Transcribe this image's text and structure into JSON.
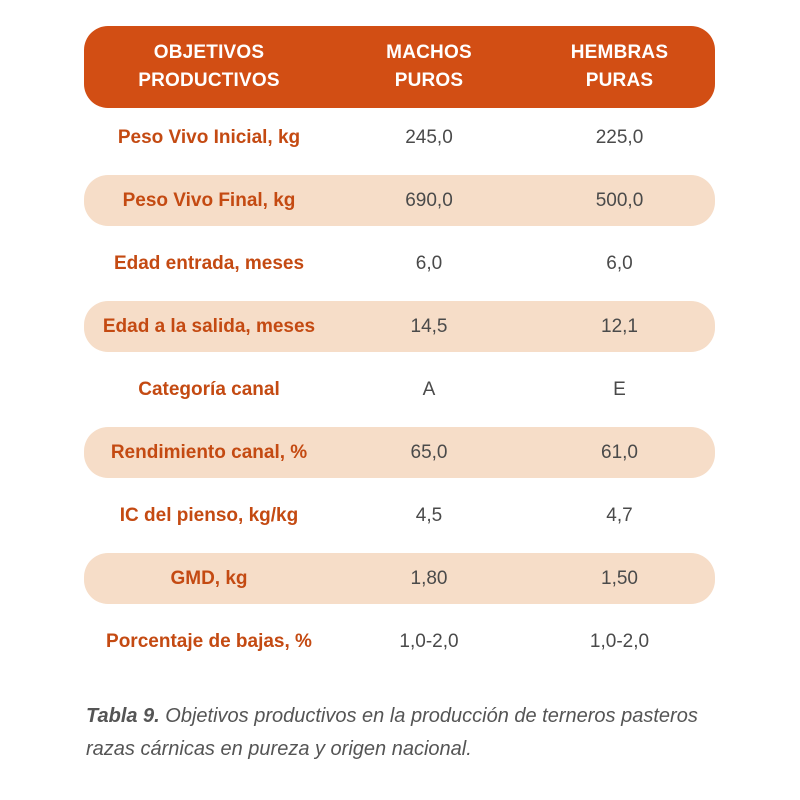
{
  "table": {
    "headers": {
      "objetivos": [
        "OBJETIVOS",
        "PRODUCTIVOS"
      ],
      "machos": [
        "MACHOS",
        "PUROS"
      ],
      "hembras": [
        "HEMBRAS",
        "PURAS"
      ]
    },
    "rows": [
      {
        "label": "Peso Vivo Inicial, kg",
        "machos": "245,0",
        "hembras": "225,0"
      },
      {
        "label": "Peso Vivo Final, kg",
        "machos": "690,0",
        "hembras": "500,0"
      },
      {
        "label": "Edad entrada, meses",
        "machos": "6,0",
        "hembras": "6,0"
      },
      {
        "label": "Edad a la salida, meses",
        "machos": "14,5",
        "hembras": "12,1"
      },
      {
        "label": "Categoría canal",
        "machos": "A",
        "hembras": "E"
      },
      {
        "label": "Rendimiento canal, %",
        "machos": "65,0",
        "hembras": "61,0"
      },
      {
        "label": "IC del pienso, kg/kg",
        "machos": "4,5",
        "hembras": "4,7"
      },
      {
        "label": "GMD, kg",
        "machos": "1,80",
        "hembras": "1,50"
      },
      {
        "label": "Porcentaje de bajas, %",
        "machos": "1,0-2,0",
        "hembras": "1,0-2,0"
      }
    ]
  },
  "caption": {
    "label": "Tabla 9.",
    "line1": "Objetivos productivos en la producción de terneros pasteros",
    "line2": "razas cárnicas en pureza y origen nacional."
  },
  "colors": {
    "header_bg": "#d24e14",
    "row_shade": "#f6ddc8",
    "label_text": "#c44a12",
    "value_text": "#4a4a4a"
  }
}
